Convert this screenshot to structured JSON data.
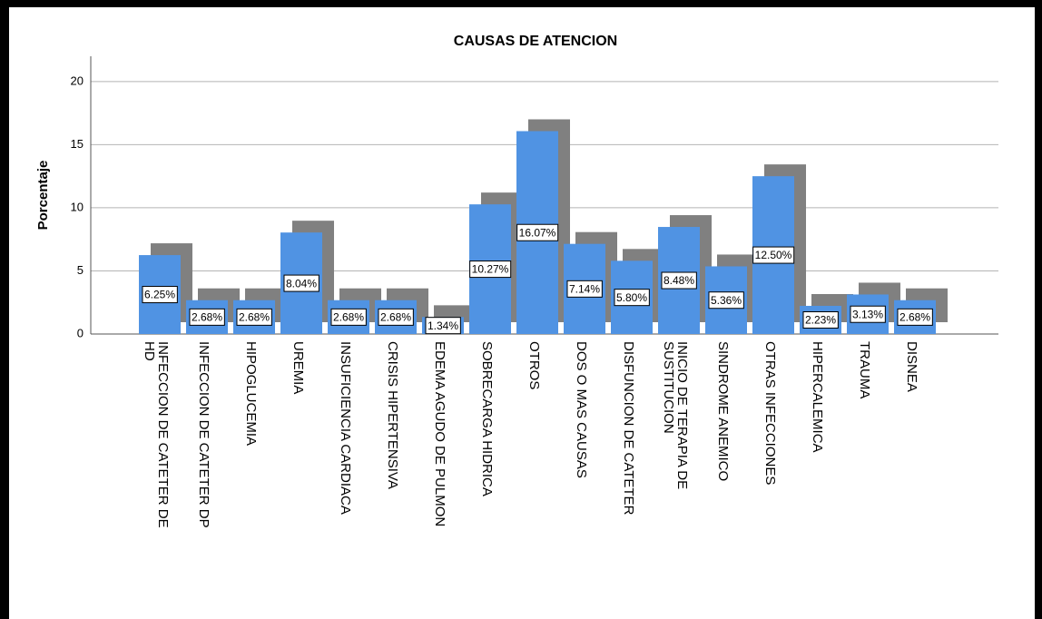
{
  "chart_data": {
    "type": "bar",
    "title": "CAUSAS DE ATENCION",
    "y_label": "Porcentaje",
    "categories": [
      "INFECCION DE CATETER DE HD",
      "INFECCION DE CATETER DP",
      "HIPOGLUCEMIA",
      "UREMIA",
      "INSUFICIENCIA CARDIACA",
      "CRISIS HIPERTENSIVA",
      "EDEMA AGUDO DE PULMON",
      "SOBRECARGA HIDRICA",
      "OTROS",
      "DOS O MAS CAUSAS",
      "DISFUNCION DE CATETER",
      "INICIO DE TERAPIA DE SUSTITUCION",
      "SINDROME ANEMICO",
      "OTRAS INFECCIONES",
      "HIPERCALEMICA",
      "TRAUMA",
      "DISNEA"
    ],
    "values": [
      6.25,
      2.68,
      2.68,
      8.04,
      2.68,
      2.68,
      1.34,
      10.27,
      16.07,
      7.14,
      5.8,
      8.48,
      5.36,
      12.5,
      2.23,
      3.13,
      2.68
    ],
    "value_labels": [
      "6.25%",
      "2.68%",
      "2.68%",
      "8.04%",
      "2.68%",
      "2.68%",
      "1.34%",
      "10.27%",
      "16.07%",
      "7.14%",
      "5.80%",
      "8.48%",
      "5.36%",
      "12.50%",
      "2.23%",
      "3.13%",
      "2.68%"
    ],
    "color": "#5093e3",
    "shadow_color": "#808080",
    "ylim": [
      0,
      22
    ],
    "yticks": [
      0,
      5,
      10,
      15,
      20
    ],
    "grid": true
  }
}
